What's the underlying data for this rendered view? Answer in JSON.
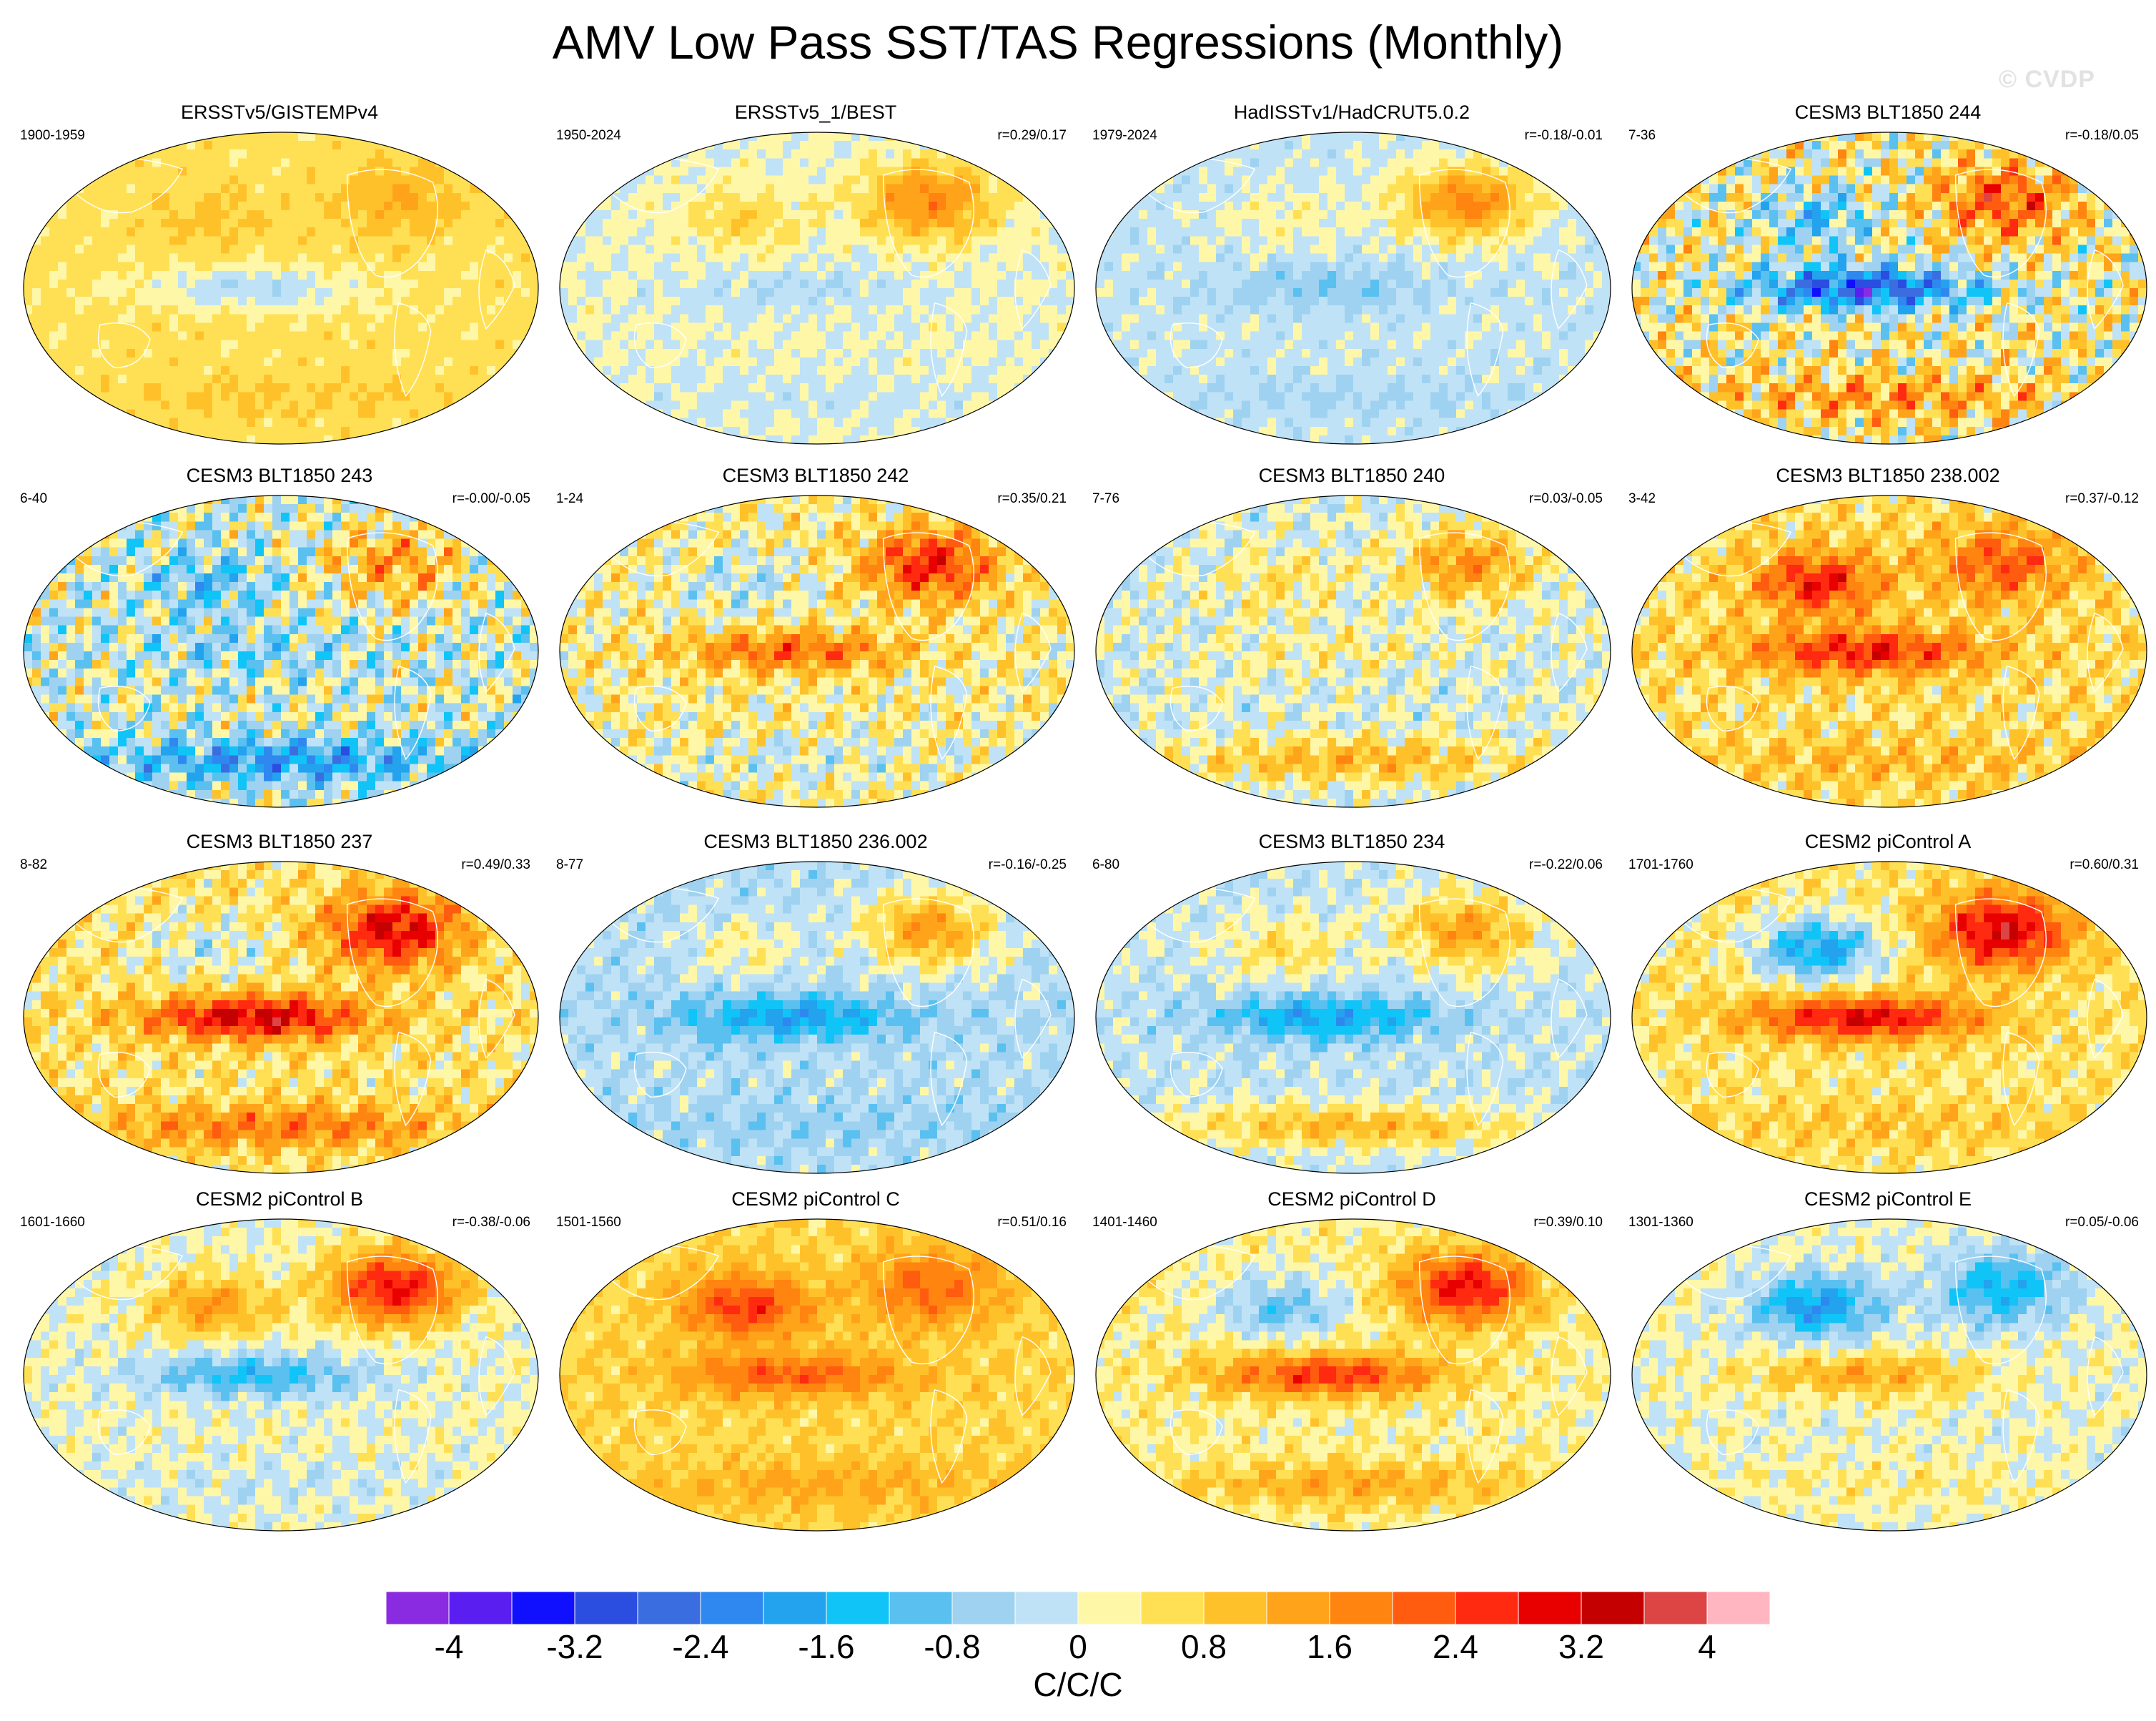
{
  "title": "AMV Low Pass SST/TAS Regressions (Monthly)",
  "watermark": "© CVDP",
  "chart_data": {
    "type": "heatmap",
    "title": "AMV Low Pass SST/TAS Regressions (Monthly)",
    "projection": "Robinson (global, Pacific-centered)",
    "field": "SST/TAS regression on AMV index",
    "units": "C/C/C",
    "colorbar": {
      "range": [
        -4.4,
        4.4
      ],
      "interval": 0.4,
      "tick_values": [
        -4,
        -3.2,
        -2.4,
        -1.6,
        -0.8,
        0,
        0.8,
        1.6,
        2.4,
        3.2,
        4
      ],
      "tick_labels": [
        "-4",
        "-3.2",
        "-2.4",
        "-1.6",
        "-0.8",
        "0",
        "0.8",
        "1.6",
        "2.4",
        "3.2",
        "4"
      ],
      "colors": [
        "#8a2be2",
        "#5a1ef0",
        "#1010ff",
        "#2b4de0",
        "#3a6ee0",
        "#2f88f0",
        "#23a2ee",
        "#10c4f8",
        "#5ac0f0",
        "#9ed2f0",
        "#c0e2f6",
        "#fff7a8",
        "#ffe054",
        "#ffc12a",
        "#ffa41a",
        "#ff8410",
        "#ff5c10",
        "#ff2a10",
        "#e80000",
        "#c40000",
        "#dd4444",
        "#ffb6c1"
      ]
    },
    "panels": [
      {
        "name": "ERSSTv5/GISTEMPv4",
        "period": "1900-1959",
        "corr": "",
        "pattern": {
          "bias": 0.55,
          "enso": -0.9,
          "na": 0.6,
          "np": 0.4,
          "so": 0.3,
          "noise": 0.25
        }
      },
      {
        "name": "ERSSTv5_1/BEST",
        "period": "1950-2024",
        "corr": "r=0.29/0.17",
        "pattern": {
          "bias": 0.05,
          "enso": -0.4,
          "na": 1.7,
          "np": 0.7,
          "so": -0.2,
          "noise": 0.35
        }
      },
      {
        "name": "HadISSTv1/HadCRUT5.0.2",
        "period": "1979-2024",
        "corr": "r=-0.18/-0.01",
        "pattern": {
          "bias": -0.15,
          "enso": -0.6,
          "na": 1.9,
          "np": 0.4,
          "so": -0.3,
          "noise": 0.35
        }
      },
      {
        "name": "CESM3 BLT1850 244",
        "period": "7-36",
        "corr": "r=-0.18/0.05",
        "pattern": {
          "bias": 0.3,
          "enso": -3.2,
          "na": 2.0,
          "np": -1.4,
          "so": 1.2,
          "noise": 1.4
        }
      },
      {
        "name": "CESM3 BLT1850 243",
        "period": "6-40",
        "corr": "r=-0.00/-0.05",
        "pattern": {
          "bias": -0.1,
          "enso": -0.6,
          "na": 1.6,
          "np": -1.0,
          "so": -1.8,
          "noise": 1.3
        }
      },
      {
        "name": "CESM3 BLT1850 242",
        "period": "1-24",
        "corr": "r=0.35/0.21",
        "pattern": {
          "bias": 0.3,
          "enso": 1.8,
          "na": 2.4,
          "np": -0.6,
          "so": -0.4,
          "noise": 0.9
        }
      },
      {
        "name": "CESM3 BLT1850 240",
        "period": "7-76",
        "corr": "r=0.03/-0.05",
        "pattern": {
          "bias": -0.05,
          "enso": 0.4,
          "na": 1.6,
          "np": 0.6,
          "so": 1.2,
          "noise": 0.7
        }
      },
      {
        "name": "CESM3 BLT1850 238.002",
        "period": "3-42",
        "corr": "r=0.37/-0.12",
        "pattern": {
          "bias": 0.6,
          "enso": 2.2,
          "na": 1.6,
          "np": 2.2,
          "so": 0.5,
          "noise": 0.8
        }
      },
      {
        "name": "CESM3 BLT1850 237",
        "period": "8-82",
        "corr": "r=0.49/0.33",
        "pattern": {
          "bias": 0.5,
          "enso": 2.8,
          "na": 2.6,
          "np": -0.7,
          "so": 1.4,
          "noise": 0.8
        }
      },
      {
        "name": "CESM3 BLT1850 236.002",
        "period": "8-77",
        "corr": "r=-0.16/-0.25",
        "pattern": {
          "bias": -0.35,
          "enso": -1.5,
          "na": 1.8,
          "np": 0.6,
          "so": -0.3,
          "noise": 0.5
        }
      },
      {
        "name": "CESM3 BLT1850 234",
        "period": "6-80",
        "corr": "r=-0.22/0.06",
        "pattern": {
          "bias": -0.2,
          "enso": -1.6,
          "na": 1.6,
          "np": 0.8,
          "so": 1.3,
          "noise": 0.5
        }
      },
      {
        "name": "CESM2 piControl A",
        "period": "1701-1760",
        "corr": "r=0.60/0.31",
        "pattern": {
          "bias": 0.5,
          "enso": 2.6,
          "na": 2.8,
          "np": -2.2,
          "so": 0.4,
          "noise": 0.6
        }
      },
      {
        "name": "CESM2 piControl B",
        "period": "1601-1660",
        "corr": "r=-0.38/-0.06",
        "pattern": {
          "bias": 0.1,
          "enso": -1.4,
          "na": 2.8,
          "np": 1.4,
          "so": -0.3,
          "noise": 0.5
        }
      },
      {
        "name": "CESM2 piControl C",
        "period": "1501-1560",
        "corr": "r=0.51/0.16",
        "pattern": {
          "bias": 0.7,
          "enso": 1.5,
          "na": 1.4,
          "np": 1.9,
          "so": 0.6,
          "noise": 0.4
        }
      },
      {
        "name": "CESM2 piControl D",
        "period": "1401-1460",
        "corr": "r=0.39/0.10",
        "pattern": {
          "bias": 0.3,
          "enso": 2.3,
          "na": 2.6,
          "np": -1.2,
          "so": 1.0,
          "noise": 0.5
        }
      },
      {
        "name": "CESM2 piControl E",
        "period": "1301-1360",
        "corr": "r=0.05/-0.06",
        "pattern": {
          "bias": 0.1,
          "enso": 1.2,
          "na": -1.6,
          "np": -2.0,
          "so": 0.3,
          "noise": 0.5
        }
      }
    ]
  }
}
